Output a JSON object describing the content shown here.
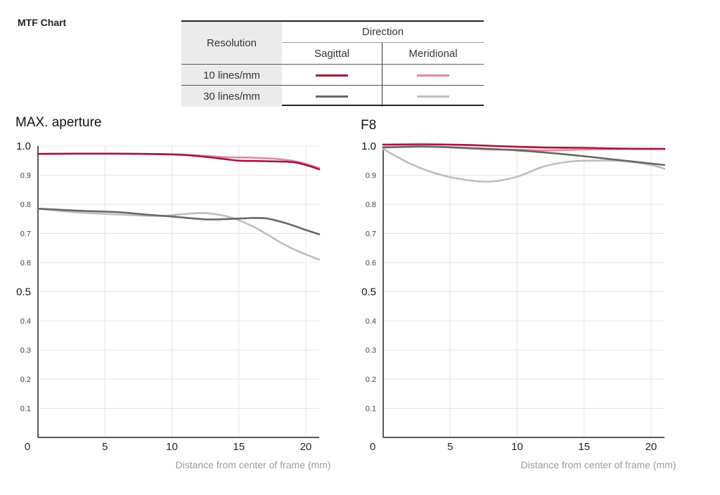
{
  "page": {
    "title": "MTF Chart"
  },
  "legend": {
    "resolution_header": "Resolution",
    "direction_header": "Direction",
    "sagittal_header": "Sagittal",
    "meridional_header": "Meridional",
    "rows": [
      {
        "label": "10 lines/mm",
        "sagittal_color": "#a3163f",
        "meridional_color": "#e08aa0"
      },
      {
        "label": "30 lines/mm",
        "sagittal_color": "#676767",
        "meridional_color": "#bdbdbd"
      }
    ]
  },
  "chart_data": [
    {
      "type": "line",
      "title": "MAX. aperture",
      "xlabel": "Distance from center of frame (mm)",
      "ylabel": "",
      "xlim": [
        0,
        21
      ],
      "ylim": [
        0,
        1.0
      ],
      "x_ticks": [
        "0",
        "5",
        "10",
        "15",
        "20"
      ],
      "y_ticks": [
        "0.1",
        "0.2",
        "0.3",
        "0.4",
        "0.5",
        "0.6",
        "0.7",
        "0.8",
        "0.9",
        "1.0"
      ],
      "y_tick_big": [
        "0.5",
        "1.0"
      ],
      "grid": true,
      "series": [
        {
          "resolution": "10 lines/mm",
          "direction": "Meridional",
          "color": "#e08aa0",
          "x": [
            0,
            5,
            10,
            12,
            14,
            16,
            18,
            19.5,
            21
          ],
          "y": [
            0.973,
            0.974,
            0.972,
            0.968,
            0.962,
            0.96,
            0.955,
            0.945,
            0.925
          ]
        },
        {
          "resolution": "10 lines/mm",
          "direction": "Sagittal",
          "color": "#a3163f",
          "x": [
            0,
            5,
            10,
            12,
            14,
            15,
            17,
            19,
            20,
            21
          ],
          "y": [
            0.973,
            0.974,
            0.971,
            0.965,
            0.955,
            0.95,
            0.948,
            0.945,
            0.935,
            0.92
          ]
        },
        {
          "resolution": "30 lines/mm",
          "direction": "Meridional",
          "color": "#bdbdbd",
          "x": [
            0,
            3,
            6,
            9,
            11,
            12.5,
            14,
            15,
            16,
            17,
            18,
            19,
            20,
            21
          ],
          "y": [
            0.785,
            0.772,
            0.765,
            0.76,
            0.767,
            0.77,
            0.76,
            0.745,
            0.725,
            0.7,
            0.672,
            0.648,
            0.628,
            0.61
          ]
        },
        {
          "resolution": "30 lines/mm",
          "direction": "Sagittal",
          "color": "#676767",
          "x": [
            0,
            3,
            6,
            8,
            10,
            12,
            13,
            15,
            16,
            17,
            18,
            19,
            20,
            21
          ],
          "y": [
            0.785,
            0.778,
            0.773,
            0.765,
            0.758,
            0.75,
            0.748,
            0.751,
            0.753,
            0.752,
            0.742,
            0.728,
            0.712,
            0.697
          ]
        }
      ]
    },
    {
      "type": "line",
      "title": "F8",
      "xlabel": "Distance from center of frame (mm)",
      "ylabel": "",
      "xlim": [
        0,
        21
      ],
      "ylim": [
        0,
        1.0
      ],
      "x_ticks": [
        "0",
        "5",
        "10",
        "15",
        "20"
      ],
      "y_ticks": [
        "0.1",
        "0.2",
        "0.3",
        "0.4",
        "0.5",
        "0.6",
        "0.7",
        "0.8",
        "0.9",
        "1.0"
      ],
      "y_tick_big": [
        "0.5",
        "1.0"
      ],
      "grid": true,
      "series": [
        {
          "resolution": "10 lines/mm",
          "direction": "Meridional",
          "color": "#e08aa0",
          "x": [
            0,
            3,
            6,
            8,
            10,
            12,
            15,
            18,
            21
          ],
          "y": [
            0.997,
            0.999,
            0.993,
            0.988,
            0.988,
            0.985,
            0.988,
            0.99,
            0.99
          ]
        },
        {
          "resolution": "10 lines/mm",
          "direction": "Sagittal",
          "color": "#a3163f",
          "x": [
            0,
            3,
            6,
            9,
            12,
            15,
            18,
            21
          ],
          "y": [
            1.005,
            1.006,
            1.004,
            0.999,
            0.995,
            0.994,
            0.991,
            0.99
          ]
        },
        {
          "resolution": "30 lines/mm",
          "direction": "Meridional",
          "color": "#bdbdbd",
          "x": [
            0,
            2,
            4,
            6,
            8,
            10,
            12,
            14,
            16,
            18,
            20,
            21
          ],
          "y": [
            0.99,
            0.94,
            0.905,
            0.885,
            0.878,
            0.895,
            0.93,
            0.947,
            0.95,
            0.948,
            0.935,
            0.922
          ]
        },
        {
          "resolution": "30 lines/mm",
          "direction": "Sagittal",
          "color": "#676767",
          "x": [
            0,
            3,
            6,
            9,
            12,
            15,
            18,
            21
          ],
          "y": [
            0.995,
            0.998,
            0.994,
            0.988,
            0.978,
            0.965,
            0.95,
            0.935
          ]
        }
      ]
    }
  ]
}
